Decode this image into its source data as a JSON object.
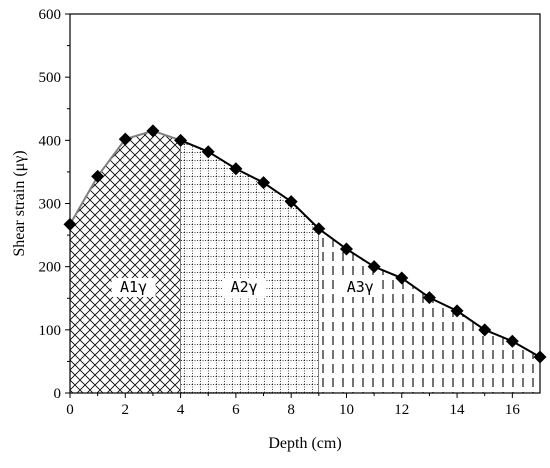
{
  "chart_data": {
    "type": "line",
    "xlabel": "Depth (cm)",
    "ylabel": "Shear strain (μγ)",
    "xlim": [
      0,
      17
    ],
    "ylim": [
      0,
      600
    ],
    "xticks": [
      0,
      2,
      4,
      6,
      8,
      10,
      12,
      14,
      16
    ],
    "yticks": [
      0,
      100,
      200,
      300,
      400,
      500,
      600
    ],
    "xtick_labels": [
      "0",
      "2",
      "4",
      "6",
      "8",
      "10",
      "12",
      "14",
      "16"
    ],
    "ytick_labels": [
      "0",
      "100",
      "200",
      "300",
      "400",
      "500",
      "600"
    ],
    "grid": false,
    "series": [
      {
        "x": [
          0,
          1,
          2,
          3,
          4,
          5,
          6,
          7,
          8,
          9,
          10,
          11,
          12,
          13,
          14,
          15,
          16,
          17
        ],
        "y": [
          267,
          343,
          402,
          415,
          400,
          382,
          355,
          333,
          303,
          260,
          228,
          200,
          182,
          151,
          130,
          100,
          82,
          57
        ],
        "marker": "diamond",
        "color": "#000000"
      }
    ],
    "regions": [
      {
        "label": "A1γ",
        "x_range": [
          0,
          4
        ],
        "pattern": "crosshatch",
        "label_at": [
          2.3,
          160
        ]
      },
      {
        "label": "A2γ",
        "x_range": [
          4,
          9
        ],
        "pattern": "dotted-grid",
        "label_at": [
          6.3,
          160
        ]
      },
      {
        "label": "A3γ",
        "x_range": [
          9,
          17
        ],
        "pattern": "dashed-vertical",
        "label_at": [
          10.5,
          160
        ]
      }
    ]
  }
}
